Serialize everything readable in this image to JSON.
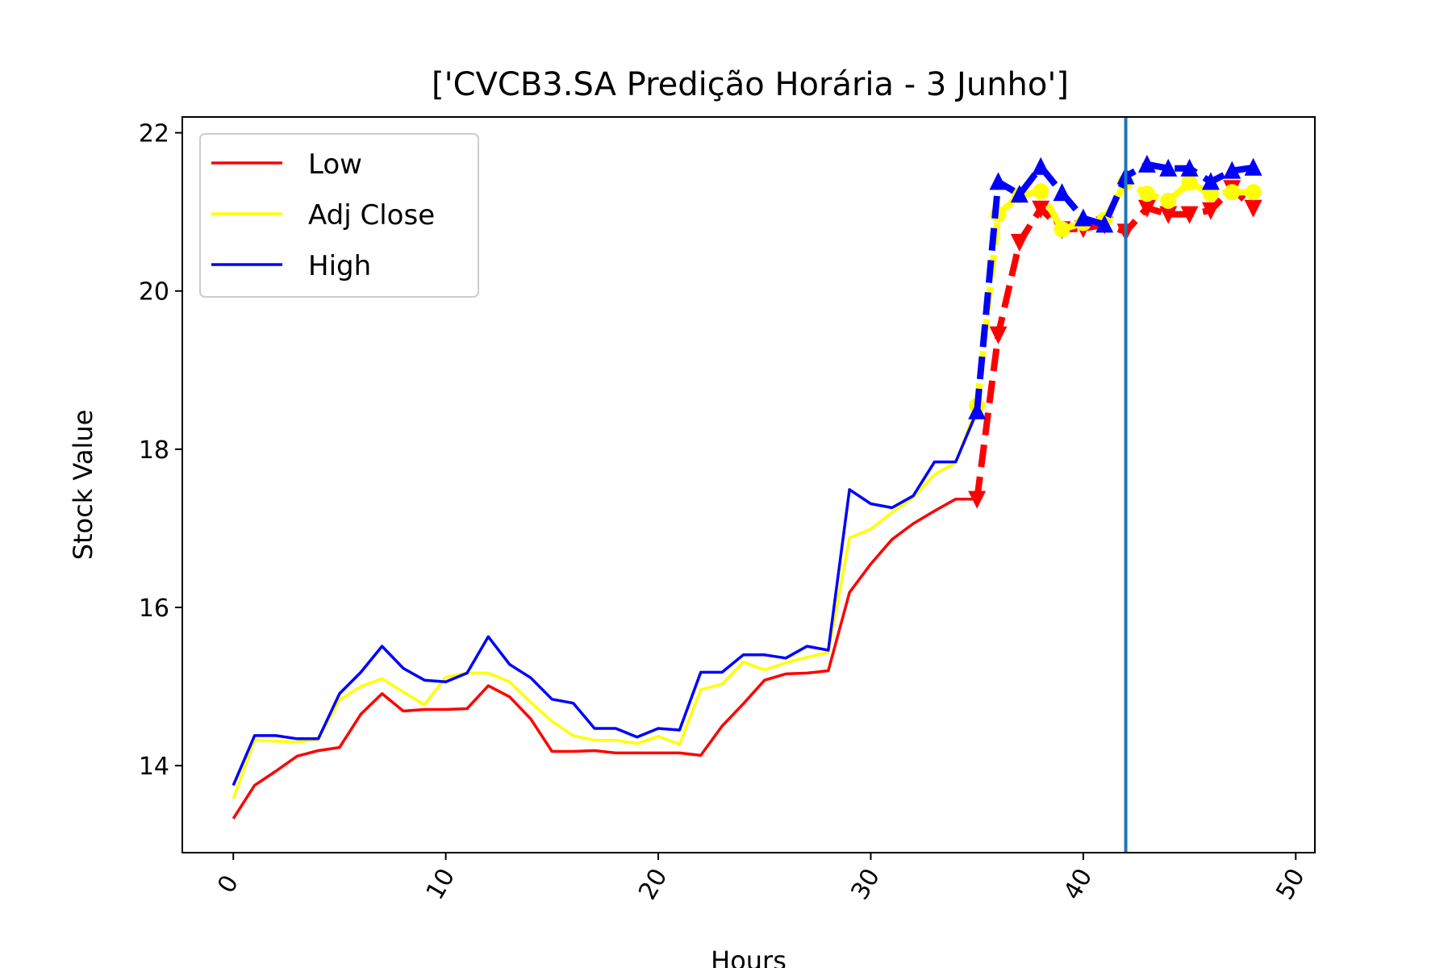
{
  "chart_data": {
    "type": "line",
    "title": "['CVCB3.SA Predição Horária - 3 Junho']",
    "xlabel": "Hours",
    "ylabel": "Stock Value",
    "xlim": [
      -2.4,
      50.9
    ],
    "ylim": [
      12.9,
      22.2
    ],
    "xticks": [
      0,
      10,
      20,
      30,
      40,
      50
    ],
    "yticks": [
      14,
      16,
      18,
      20,
      22
    ],
    "grid": false,
    "legend_position": "top-left",
    "vline_x": 42,
    "vline_color": "#1f77b4",
    "series": [
      {
        "name": "Low",
        "color": "#ff0000",
        "x": [
          0,
          1,
          2,
          3,
          4,
          5,
          6,
          7,
          8,
          9,
          10,
          11,
          12,
          13,
          14,
          15,
          16,
          17,
          18,
          19,
          20,
          21,
          22,
          23,
          24,
          25,
          26,
          27,
          28,
          29,
          30,
          31,
          32,
          33,
          34,
          35
        ],
        "values": [
          13.33,
          13.75,
          13.93,
          14.12,
          14.19,
          14.23,
          14.65,
          14.91,
          14.69,
          14.71,
          14.71,
          14.72,
          15.01,
          14.87,
          14.59,
          14.18,
          14.18,
          14.19,
          14.16,
          14.16,
          14.16,
          14.16,
          14.13,
          14.5,
          14.78,
          15.08,
          15.16,
          15.17,
          15.2,
          16.19,
          16.55,
          16.86,
          17.06,
          17.22,
          17.37,
          17.37
        ],
        "pred_x": [
          35,
          36,
          37,
          38,
          39,
          40,
          41,
          42,
          43,
          44,
          45,
          46,
          47,
          48
        ],
        "pred_values": [
          17.37,
          19.45,
          20.62,
          21.04,
          20.78,
          20.79,
          20.84,
          20.75,
          21.05,
          20.97,
          20.97,
          21.02,
          21.3,
          21.05
        ]
      },
      {
        "name": "Adj Close",
        "color": "#ffff00",
        "x": [
          0,
          1,
          2,
          3,
          4,
          5,
          6,
          7,
          8,
          9,
          10,
          11,
          12,
          13,
          14,
          15,
          16,
          17,
          18,
          19,
          20,
          21,
          22,
          23,
          24,
          25,
          26,
          27,
          28,
          29,
          30,
          31,
          32,
          33,
          34,
          35
        ],
        "values": [
          13.58,
          14.32,
          14.31,
          14.3,
          14.33,
          14.83,
          15.0,
          15.1,
          14.93,
          14.77,
          15.12,
          15.17,
          15.17,
          15.06,
          14.8,
          14.56,
          14.38,
          14.32,
          14.32,
          14.28,
          14.37,
          14.27,
          14.96,
          15.03,
          15.31,
          15.21,
          15.3,
          15.37,
          15.43,
          16.88,
          16.99,
          17.2,
          17.39,
          17.68,
          17.83,
          18.55
        ],
        "pred_x": [
          35,
          36,
          37,
          38,
          39,
          40,
          41,
          42,
          43,
          44,
          45,
          46,
          47,
          48
        ],
        "pred_values": [
          18.55,
          20.97,
          21.21,
          21.26,
          20.78,
          20.86,
          20.9,
          21.38,
          21.23,
          21.14,
          21.37,
          21.23,
          21.25,
          21.25
        ]
      },
      {
        "name": "High",
        "color": "#0000ff",
        "x": [
          0,
          1,
          2,
          3,
          4,
          5,
          6,
          7,
          8,
          9,
          10,
          11,
          12,
          13,
          14,
          15,
          16,
          17,
          18,
          19,
          20,
          21,
          22,
          23,
          24,
          25,
          26,
          27,
          28,
          29,
          30,
          31,
          32,
          33,
          34,
          35
        ],
        "values": [
          13.75,
          14.38,
          14.38,
          14.34,
          14.34,
          14.91,
          15.18,
          15.51,
          15.23,
          15.08,
          15.06,
          15.17,
          15.63,
          15.28,
          15.11,
          14.84,
          14.79,
          14.47,
          14.47,
          14.36,
          14.47,
          14.45,
          15.18,
          15.18,
          15.4,
          15.4,
          15.36,
          15.51,
          15.46,
          17.49,
          17.31,
          17.26,
          17.41,
          17.84,
          17.84,
          18.48
        ],
        "pred_x": [
          35,
          36,
          37,
          38,
          39,
          40,
          41,
          42,
          43,
          44,
          45,
          46,
          47,
          48
        ],
        "pred_values": [
          18.48,
          21.38,
          21.22,
          21.57,
          21.24,
          20.92,
          20.84,
          21.45,
          21.6,
          21.55,
          21.55,
          21.38,
          21.52,
          21.56
        ]
      }
    ]
  }
}
